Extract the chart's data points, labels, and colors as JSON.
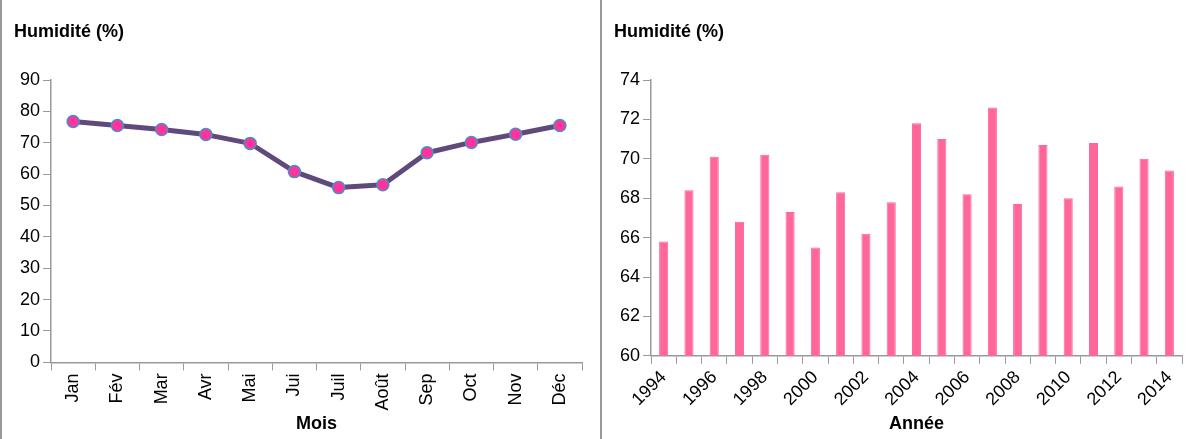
{
  "chart_data": [
    {
      "type": "line",
      "ylabel": "Humidité (%)",
      "xlabel": "Mois",
      "categories": [
        "Jan",
        "Fév",
        "Mar",
        "Avr",
        "Mai",
        "Jui",
        "Juil",
        "Août",
        "Sep",
        "Oct",
        "Nov",
        "Déc"
      ],
      "series": [
        {
          "color": "#604a7b",
          "colors": [
            "#ff3399",
            "#ff3399",
            "#ff3399",
            "#ff3399",
            "#ff3399",
            "#ff3399",
            "#ff3399",
            "#ff3399",
            "#ff3399",
            "#ff3399",
            "#ff3399",
            "#ff3399"
          ],
          "values": [
            76.8,
            75.5,
            74.2,
            72.6,
            69.8,
            60.8,
            55.7,
            56.6,
            66.8,
            70.1,
            72.7,
            75.5
          ]
        }
      ],
      "marker": "circle",
      "ylim": [
        0,
        90
      ],
      "yticks": [
        0,
        10,
        20,
        30,
        40,
        50,
        60,
        70,
        80,
        90
      ],
      "grid": false,
      "legend": false
    },
    {
      "type": "bar",
      "ylabel": "Humidité (%)",
      "xlabel": "Année",
      "categories": [
        "1994",
        null,
        "1996",
        null,
        "1998",
        null,
        "2000",
        null,
        "2002",
        null,
        "2004",
        null,
        "2006",
        null,
        "2008",
        null,
        "2010",
        null,
        "2012",
        null,
        "2014"
      ],
      "series": [
        {
          "color": "#ff6699",
          "values": [
            65.8,
            68.4,
            70.1,
            66.8,
            70.2,
            67.3,
            65.5,
            68.3,
            66.2,
            67.8,
            71.8,
            71.0,
            68.2,
            72.6,
            67.7,
            70.7,
            68.0,
            70.8,
            68.6,
            70.0,
            69.4
          ]
        }
      ],
      "ylim": [
        60,
        74
      ],
      "yticks": [
        60,
        62,
        64,
        66,
        68,
        70,
        72,
        74
      ],
      "grid": false,
      "legend": false
    }
  ]
}
